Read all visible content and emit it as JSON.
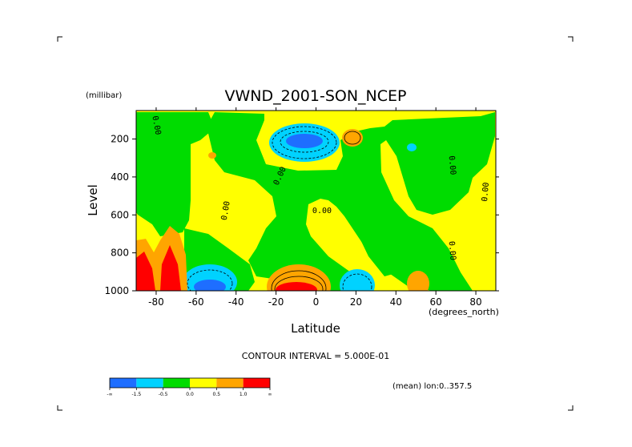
{
  "chart_data": {
    "type": "heatmap",
    "title": "VWND_2001-SON_NCEP",
    "ylabel": "Level",
    "yunits": "(millibar)",
    "xlabel": "Latitude",
    "xunits": "(degrees_north)",
    "contour_interval": "CONTOUR INTERVAL = 5.000E-01",
    "footnote": "(mean) lon:0..357.5",
    "xlim": [
      -90,
      90
    ],
    "ylim": [
      1000,
      50
    ],
    "y_reversed": true,
    "x_ticks": [
      -80,
      -60,
      -40,
      -20,
      0,
      20,
      40,
      60,
      80
    ],
    "x_tick_labels": [
      "-80",
      "-60",
      "-40",
      "-20",
      "0",
      "20",
      "40",
      "60",
      "80"
    ],
    "y_ticks": [
      200,
      400,
      600,
      800,
      1000
    ],
    "y_tick_labels": [
      "200",
      "400",
      "600",
      "800",
      "1000"
    ],
    "colorbar": {
      "bins": [
        {
          "color": "#1e6eff"
        },
        {
          "color": "#00d2ff"
        },
        {
          "color": "#00dc00"
        },
        {
          "color": "#ffff00"
        },
        {
          "color": "#ffa500"
        },
        {
          "color": "#ff0000"
        }
      ],
      "labels": [
        "-∞",
        "-1.5",
        "-0.5",
        "0.0",
        "0.5",
        "1.0",
        "∞"
      ]
    },
    "contour_labels": [
      {
        "text": "0.00",
        "x": -81,
        "y": 130,
        "rotate": 80
      },
      {
        "text": "0.00",
        "x": -44,
        "y": 580,
        "rotate": -80
      },
      {
        "text": "0.00",
        "x": -17,
        "y": 400,
        "rotate": -65
      },
      {
        "text": "0.00",
        "x": 3,
        "y": 590,
        "rotate": 0
      },
      {
        "text": "0.00",
        "x": 67,
        "y": 340,
        "rotate": 85
      },
      {
        "text": "0.00",
        "x": 67,
        "y": 790,
        "rotate": 85
      },
      {
        "text": "0.00",
        "x": 86,
        "y": 480,
        "rotate": -85
      }
    ]
  }
}
